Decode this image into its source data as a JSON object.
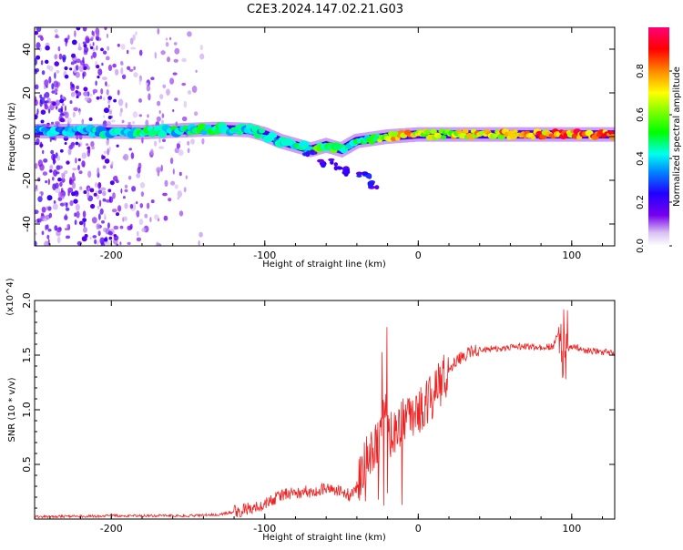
{
  "title": "C2E3.2024.147.02.21.G03",
  "chart_data": [
    {
      "type": "heatmap",
      "xlabel": "Height of straight line (km)",
      "ylabel": "Frequency (Hz)",
      "xlim": [
        -250,
        128
      ],
      "ylim": [
        -50,
        50
      ],
      "xticks": [
        -200,
        -100,
        0,
        100
      ],
      "yticks": [
        -40,
        -20,
        0,
        20,
        40
      ],
      "colorbar": {
        "label": "Normalized spectral amplitude",
        "range": [
          0,
          1
        ],
        "ticks": [
          "0.0",
          "0.2",
          "0.4",
          "0.6",
          "0.8"
        ],
        "tick_values": [
          0,
          0.2,
          0.4,
          0.6,
          0.8
        ],
        "scale": "rainbow"
      },
      "ridge": [
        {
          "x": -250,
          "y": 2.5,
          "amp": 0.35
        },
        {
          "x": -220,
          "y": 2.5,
          "amp": 0.4
        },
        {
          "x": -180,
          "y": 2.0,
          "amp": 0.45
        },
        {
          "x": -150,
          "y": 3.0,
          "amp": 0.45
        },
        {
          "x": -130,
          "y": 3.5,
          "amp": 0.5
        },
        {
          "x": -110,
          "y": 3.0,
          "amp": 0.45
        },
        {
          "x": -100,
          "y": 1.0,
          "amp": 0.4
        },
        {
          "x": -90,
          "y": -2.0,
          "amp": 0.4
        },
        {
          "x": -80,
          "y": -4.0,
          "amp": 0.45
        },
        {
          "x": -70,
          "y": -6.0,
          "amp": 0.5
        },
        {
          "x": -60,
          "y": -4.0,
          "amp": 0.55
        },
        {
          "x": -50,
          "y": -6.0,
          "amp": 0.5
        },
        {
          "x": -40,
          "y": -2.0,
          "amp": 0.45
        },
        {
          "x": -30,
          "y": -1.0,
          "amp": 0.55
        },
        {
          "x": -20,
          "y": 0.0,
          "amp": 0.65
        },
        {
          "x": -10,
          "y": 0.5,
          "amp": 0.8
        },
        {
          "x": 0,
          "y": 1.0,
          "amp": 0.7
        },
        {
          "x": 20,
          "y": 1.0,
          "amp": 0.7
        },
        {
          "x": 50,
          "y": 1.0,
          "amp": 0.75
        },
        {
          "x": 90,
          "y": 1.0,
          "amp": 0.85
        },
        {
          "x": 110,
          "y": 1.0,
          "amp": 0.85
        },
        {
          "x": 128,
          "y": 1.0,
          "amp": 0.8
        }
      ],
      "lower_branch": [
        {
          "x": -70,
          "y": -8.0
        },
        {
          "x": -60,
          "y": -12.0
        },
        {
          "x": -50,
          "y": -14.0
        },
        {
          "x": -45,
          "y": -16.0
        },
        {
          "x": -35,
          "y": -18.0
        },
        {
          "x": -28,
          "y": -22.0
        }
      ]
    },
    {
      "type": "line",
      "xlabel": "Height of straight line (km)",
      "ylabel": "SNR (10 * v/v)",
      "scale_note": "(x10^4)",
      "xlim": [
        -250,
        128
      ],
      "ylim": [
        0,
        2.0
      ],
      "xticks": [
        -200,
        -100,
        0,
        100
      ],
      "yticks": [
        0.5,
        1.0,
        1.5,
        2.0
      ],
      "series": [
        {
          "color": "#ee2222",
          "x": [
            -250,
            -200,
            -150,
            -130,
            -115,
            -100,
            -90,
            -80,
            -70,
            -60,
            -50,
            -45,
            -40,
            -35,
            -30,
            -25,
            -22,
            -20,
            -15,
            -10,
            -5,
            0,
            5,
            10,
            15,
            20,
            25,
            30,
            35,
            40,
            50,
            60,
            70,
            80,
            88,
            92,
            94,
            96,
            100,
            110,
            120,
            128
          ],
          "y": [
            0.02,
            0.03,
            0.03,
            0.04,
            0.08,
            0.13,
            0.22,
            0.24,
            0.25,
            0.27,
            0.25,
            0.22,
            0.3,
            0.55,
            0.62,
            0.7,
            1.1,
            0.8,
            0.75,
            0.9,
            0.95,
            1.0,
            1.05,
            1.15,
            1.25,
            1.35,
            1.45,
            1.5,
            1.53,
            1.55,
            1.56,
            1.57,
            1.58,
            1.57,
            1.58,
            1.75,
            1.3,
            1.55,
            1.58,
            1.54,
            1.53,
            1.52
          ]
        }
      ]
    }
  ]
}
